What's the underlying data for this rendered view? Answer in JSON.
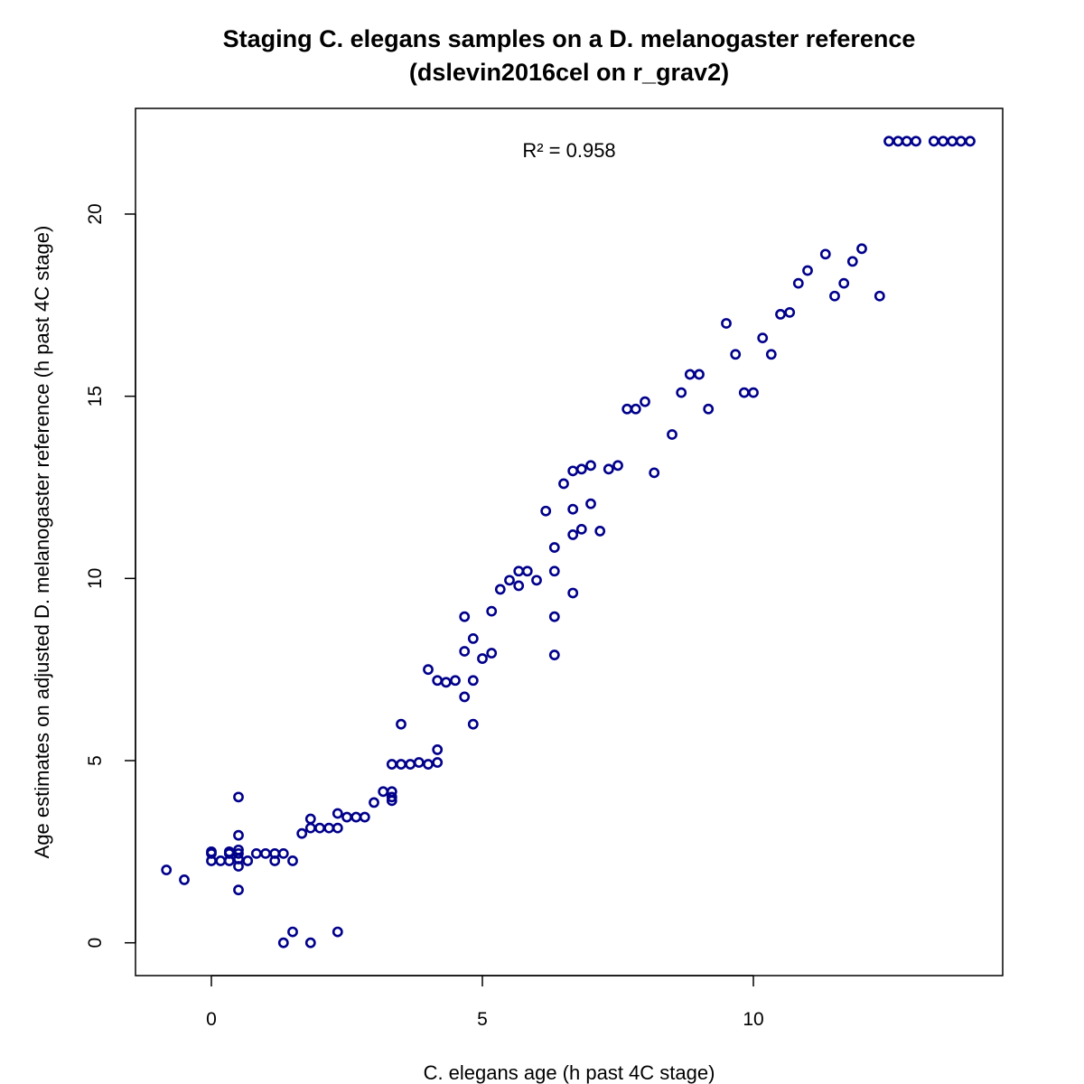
{
  "chart_data": {
    "type": "scatter",
    "title": "Staging C. elegans samples on a D. melanogaster reference",
    "subtitle": "(dslevin2016cel on r_grav2)",
    "xlabel": "C. elegans age (h past 4C stage)",
    "ylabel": "Age estimates on adjusted D. melanogaster reference (h past 4C stage)",
    "annotation": "R² = 0.958",
    "xlim": [
      -1.4,
      14.6
    ],
    "ylim": [
      -0.9,
      22.9
    ],
    "xticks": [
      0,
      5,
      10
    ],
    "yticks": [
      0,
      5,
      10,
      15,
      20
    ],
    "grid": false,
    "legend": "none",
    "marker_color": "#00008B",
    "points": [
      [
        -0.83,
        2.0
      ],
      [
        -0.5,
        1.73
      ],
      [
        0.0,
        2.5
      ],
      [
        0.0,
        2.45
      ],
      [
        0.0,
        2.25
      ],
      [
        0.17,
        2.25
      ],
      [
        0.33,
        2.25
      ],
      [
        0.33,
        2.45
      ],
      [
        0.33,
        2.5
      ],
      [
        0.5,
        2.45
      ],
      [
        0.5,
        2.55
      ],
      [
        0.5,
        2.3
      ],
      [
        0.5,
        2.1
      ],
      [
        0.5,
        2.95
      ],
      [
        0.5,
        4.0
      ],
      [
        0.5,
        1.45
      ],
      [
        0.67,
        2.25
      ],
      [
        0.83,
        2.45
      ],
      [
        1.0,
        2.45
      ],
      [
        1.17,
        2.45
      ],
      [
        1.17,
        2.25
      ],
      [
        1.33,
        2.45
      ],
      [
        1.5,
        2.25
      ],
      [
        1.33,
        0.0
      ],
      [
        1.5,
        0.3
      ],
      [
        1.83,
        0.0
      ],
      [
        2.33,
        0.3
      ],
      [
        1.67,
        3.0
      ],
      [
        1.83,
        3.15
      ],
      [
        1.83,
        3.4
      ],
      [
        2.0,
        3.15
      ],
      [
        2.17,
        3.15
      ],
      [
        2.33,
        3.15
      ],
      [
        2.33,
        3.55
      ],
      [
        2.5,
        3.45
      ],
      [
        2.67,
        3.45
      ],
      [
        2.83,
        3.45
      ],
      [
        3.0,
        3.85
      ],
      [
        3.17,
        4.15
      ],
      [
        3.33,
        4.15
      ],
      [
        3.33,
        4.0
      ],
      [
        3.33,
        3.9
      ],
      [
        3.33,
        4.9
      ],
      [
        3.5,
        4.9
      ],
      [
        3.5,
        6.0
      ],
      [
        3.67,
        4.9
      ],
      [
        3.83,
        4.95
      ],
      [
        4.0,
        4.9
      ],
      [
        4.0,
        7.5
      ],
      [
        4.17,
        4.95
      ],
      [
        4.17,
        5.3
      ],
      [
        4.17,
        7.2
      ],
      [
        4.33,
        7.15
      ],
      [
        4.5,
        7.2
      ],
      [
        4.67,
        6.75
      ],
      [
        4.67,
        8.0
      ],
      [
        4.67,
        8.95
      ],
      [
        4.83,
        8.35
      ],
      [
        4.83,
        7.2
      ],
      [
        4.83,
        6.0
      ],
      [
        5.0,
        7.8
      ],
      [
        5.17,
        7.95
      ],
      [
        5.17,
        9.1
      ],
      [
        5.33,
        9.7
      ],
      [
        5.5,
        9.95
      ],
      [
        5.67,
        10.2
      ],
      [
        5.67,
        9.8
      ],
      [
        5.83,
        10.2
      ],
      [
        6.0,
        9.95
      ],
      [
        6.17,
        11.85
      ],
      [
        6.33,
        10.85
      ],
      [
        6.33,
        10.2
      ],
      [
        6.33,
        8.95
      ],
      [
        6.33,
        7.9
      ],
      [
        6.5,
        12.6
      ],
      [
        6.67,
        12.95
      ],
      [
        6.67,
        11.9
      ],
      [
        6.67,
        11.2
      ],
      [
        6.67,
        9.6
      ],
      [
        6.83,
        13.0
      ],
      [
        6.83,
        11.35
      ],
      [
        7.0,
        13.1
      ],
      [
        7.0,
        12.05
      ],
      [
        7.17,
        11.3
      ],
      [
        7.33,
        13.0
      ],
      [
        7.5,
        13.1
      ],
      [
        7.67,
        14.65
      ],
      [
        7.83,
        14.65
      ],
      [
        8.0,
        14.85
      ],
      [
        8.17,
        12.9
      ],
      [
        8.5,
        13.95
      ],
      [
        8.67,
        15.1
      ],
      [
        8.83,
        15.6
      ],
      [
        9.0,
        15.6
      ],
      [
        9.17,
        14.65
      ],
      [
        9.5,
        17.0
      ],
      [
        9.67,
        16.15
      ],
      [
        9.83,
        15.1
      ],
      [
        10.0,
        15.1
      ],
      [
        10.17,
        16.6
      ],
      [
        10.33,
        16.15
      ],
      [
        10.5,
        17.25
      ],
      [
        10.67,
        17.3
      ],
      [
        10.83,
        18.1
      ],
      [
        11.0,
        18.45
      ],
      [
        11.33,
        18.9
      ],
      [
        11.5,
        17.75
      ],
      [
        11.67,
        18.1
      ],
      [
        11.83,
        18.7
      ],
      [
        12.0,
        19.05
      ],
      [
        12.33,
        17.75
      ],
      [
        12.5,
        22.0
      ],
      [
        12.67,
        22.0
      ],
      [
        12.83,
        22.0
      ],
      [
        13.0,
        22.0
      ],
      [
        13.33,
        22.0
      ],
      [
        13.5,
        22.0
      ],
      [
        13.67,
        22.0
      ],
      [
        13.83,
        22.0
      ],
      [
        14.0,
        22.0
      ]
    ]
  }
}
